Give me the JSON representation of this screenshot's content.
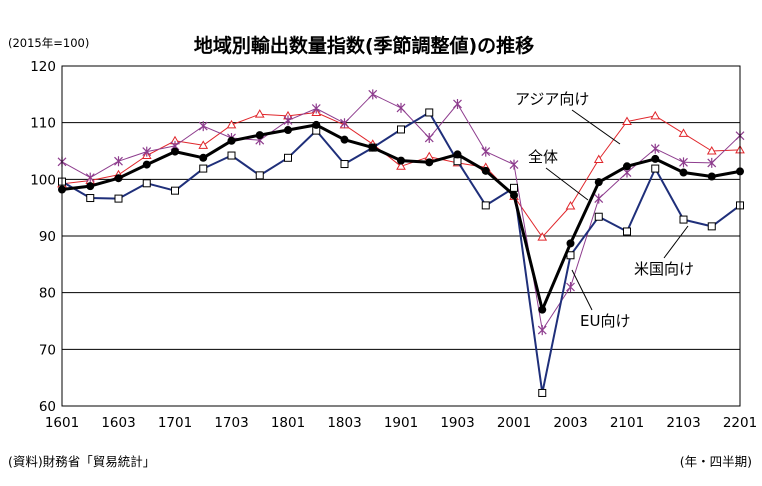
{
  "chart_data": {
    "type": "line",
    "title": "地域別輸出数量指数(季節調整値)の推移",
    "unit_note": "(2015年=100)",
    "source_note": "(資料)財務省「貿易統計」",
    "xaxis_note": "(年・四半期)",
    "x": [
      "1601",
      "1602",
      "1603",
      "1604",
      "1701",
      "1702",
      "1703",
      "1704",
      "1801",
      "1802",
      "1803",
      "1804",
      "1901",
      "1902",
      "1903",
      "1904",
      "2001",
      "2002",
      "2003",
      "2004",
      "2101",
      "2102",
      "2103",
      "2104",
      "2201"
    ],
    "x_tick_labels": [
      "1601",
      "1603",
      "1701",
      "1703",
      "1801",
      "1803",
      "1901",
      "1903",
      "2001",
      "2003",
      "2101",
      "2103",
      "2201"
    ],
    "ylim": [
      60,
      120
    ],
    "y_ticks": [
      60,
      70,
      80,
      90,
      100,
      110,
      120
    ],
    "grid": true,
    "series": [
      {
        "name": "アジア向け",
        "color": "#e0262b",
        "marker": "triangle",
        "values": [
          99.2,
          99.8,
          100.8,
          104.2,
          106.8,
          106.0,
          109.6,
          111.5,
          111.2,
          111.8,
          109.6,
          106.2,
          102.3,
          104.0,
          102.9,
          102.1,
          97.0,
          89.8,
          95.3,
          103.5,
          110.2,
          111.2,
          108.1,
          105.0,
          105.2
        ]
      },
      {
        "name": "全体",
        "color": "#000000",
        "marker": "circle",
        "values": [
          98.2,
          98.8,
          100.2,
          102.6,
          104.9,
          103.8,
          106.8,
          107.8,
          108.7,
          109.6,
          107.0,
          105.6,
          103.3,
          103.0,
          104.4,
          101.5,
          97.2,
          77.0,
          88.7,
          99.5,
          102.3,
          103.6,
          101.2,
          100.5,
          101.4
        ]
      },
      {
        "name": "米国向け",
        "color": "#1f2f7a",
        "marker": "square",
        "values": [
          99.6,
          96.7,
          96.6,
          99.3,
          98.0,
          101.9,
          104.2,
          100.7,
          103.8,
          108.6,
          102.7,
          105.6,
          108.8,
          111.8,
          103.2,
          95.4,
          98.5,
          62.3,
          86.6,
          93.4,
          90.8,
          101.9,
          92.9,
          91.7,
          95.4
        ]
      },
      {
        "name": "EU向け",
        "color": "#8e3d8e",
        "marker": "cross",
        "values": [
          103.1,
          100.3,
          103.2,
          104.9,
          105.9,
          109.4,
          107.3,
          106.9,
          110.4,
          112.5,
          109.9,
          115.0,
          112.6,
          107.3,
          113.3,
          104.9,
          102.6,
          73.4,
          81.0,
          96.6,
          101.2,
          105.4,
          103.0,
          102.9,
          107.7
        ]
      }
    ]
  }
}
